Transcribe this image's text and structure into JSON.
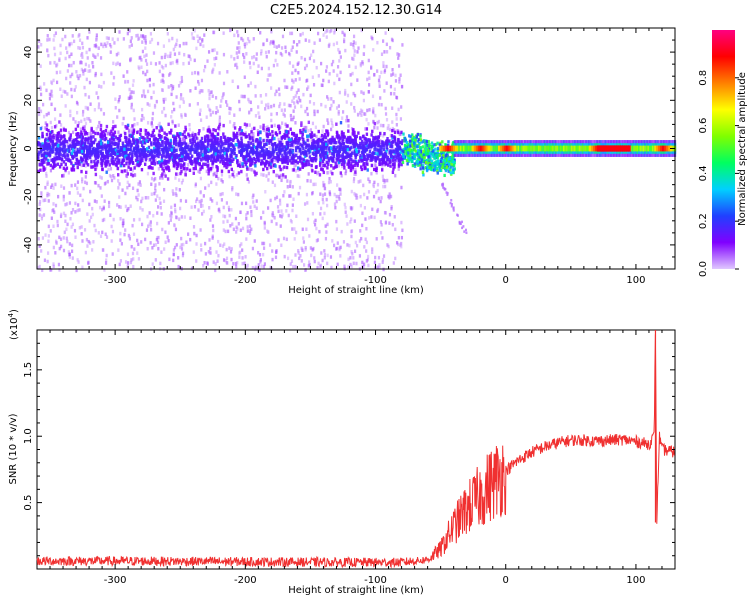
{
  "figure_title": "C2E5.2024.152.12.30.G14",
  "chart_data": [
    {
      "type": "heatmap",
      "xlabel": "Height of straight line (km)",
      "ylabel": "Frequency (Hz)",
      "xlim": [
        -360,
        130
      ],
      "ylim": [
        -50,
        50
      ],
      "x_ticks": [
        -300,
        -200,
        -100,
        0,
        100
      ],
      "y_ticks": [
        -40,
        -20,
        0,
        20,
        40
      ],
      "colorbar": {
        "label": "Normalized spectral amplitude",
        "range": [
          0,
          1
        ],
        "ticks": [
          0.0,
          0.2,
          0.4,
          0.6,
          0.8
        ],
        "tick_labels": [
          "0.0",
          "0.2",
          "0.4",
          "0.6",
          "0.8"
        ],
        "colormap": [
          "#e0c8ff",
          "#8000ff",
          "#2040ff",
          "#00d0ff",
          "#00ff60",
          "#80ff00",
          "#ffff00",
          "#ff8000",
          "#ff0000",
          "#ff0080"
        ]
      },
      "regions": [
        {
          "x": [
            -360,
            -80
          ],
          "freq_band": [
            -10,
            10
          ],
          "amplitude": 0.1,
          "scatter_span": [
            -50,
            50
          ],
          "scatter_amplitude": 0.03
        },
        {
          "x": [
            -80,
            -40
          ],
          "freq_band": [
            -6,
            6
          ],
          "amplitude": 0.45
        },
        {
          "x": [
            -40,
            130
          ],
          "freq_band": [
            -3,
            3
          ],
          "amplitude": 0.5,
          "peaks": [
            -45,
            -20,
            0,
            70,
            85,
            120
          ]
        }
      ]
    },
    {
      "type": "line",
      "xlabel": "Height of straight line (km)",
      "ylabel": "SNR (10 * v/v)",
      "y_multiplier": "(x10",
      "y_multiplier_exp": "4",
      "y_multiplier_close": ")",
      "xlim": [
        -360,
        130
      ],
      "ylim": [
        0,
        18000
      ],
      "x_ticks": [
        -300,
        -200,
        -100,
        0,
        100
      ],
      "y_ticks": [
        5000,
        10000,
        15000
      ],
      "y_tick_labels": [
        "0.5",
        "1.0",
        "1.5"
      ],
      "series": [
        {
          "color": "#f03030",
          "x": [
            -360,
            -300,
            -200,
            -120,
            -80,
            -60,
            -50,
            -40,
            -30,
            -20,
            -10,
            0,
            10,
            20,
            30,
            40,
            50,
            60,
            70,
            80,
            90,
            100,
            110,
            114,
            115,
            116,
            118,
            120,
            130
          ],
          "values": [
            600,
            600,
            550,
            500,
            500,
            700,
            1500,
            3200,
            4500,
            5500,
            6500,
            7400,
            8200,
            8800,
            9200,
            9500,
            9700,
            9700,
            9650,
            9700,
            9750,
            9600,
            9400,
            10000,
            18000,
            3500,
            10000,
            9000,
            8800
          ]
        }
      ]
    }
  ]
}
